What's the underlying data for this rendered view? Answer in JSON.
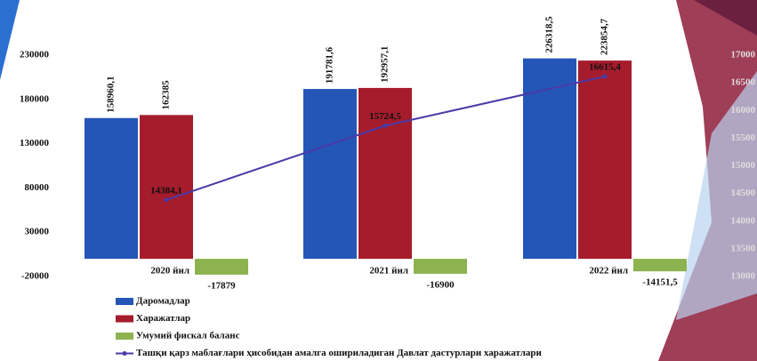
{
  "chart_data": {
    "type": "bar",
    "categories": [
      "2020 йил",
      "2021 йил",
      "2022 йил"
    ],
    "ylim": [
      -20000,
      230000
    ],
    "yticks": [
      -20000,
      30000,
      80000,
      130000,
      180000,
      230000
    ],
    "y2lim": [
      13000,
      17000
    ],
    "y2ticks": [
      13000,
      13500,
      14000,
      14500,
      15000,
      15500,
      16000,
      16500,
      17000
    ],
    "grid": false,
    "legend": "bottom-left",
    "series": [
      {
        "name": "Даромадлар",
        "type": "bar",
        "color": "#2456b8",
        "values": [
          158960.1,
          191781.6,
          226318.5
        ],
        "value_labels": [
          "158960,1",
          "191781,6",
          "226318,5"
        ]
      },
      {
        "name": "Харажатлар",
        "type": "bar",
        "color": "#a51c2c",
        "values": [
          162385,
          192957.1,
          223854.7
        ],
        "value_labels": [
          "162385",
          "192957,1",
          "223854,7"
        ]
      },
      {
        "name": "Умумий фискал баланс",
        "type": "bar",
        "color": "#8db250",
        "values": [
          -17879,
          -16900,
          -14151.5
        ],
        "value_labels": [
          "-17879",
          "-16900",
          "-14151,5"
        ]
      },
      {
        "name": "Ташқи қарз маблағлари ҳисобидан амалга ошириладиган Давлат дастурлари харажатлари",
        "type": "line",
        "axis": "y2",
        "color": "#4a3aa8",
        "values": [
          14384.1,
          15724.5,
          16615.4
        ],
        "value_labels": [
          "14384,1",
          "15724,5",
          "16615,4"
        ]
      }
    ]
  }
}
